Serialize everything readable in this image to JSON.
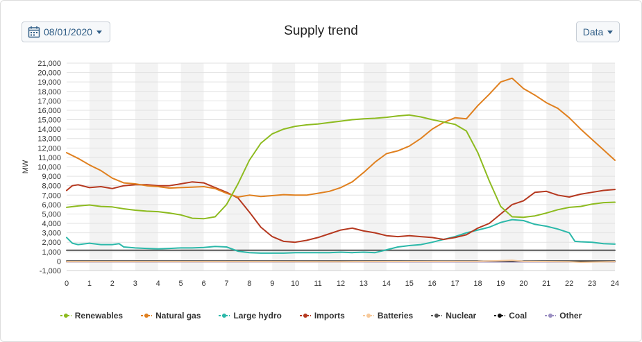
{
  "header": {
    "date_label": "08/01/2020",
    "data_label": "Data",
    "title": "Supply trend"
  },
  "icons": {
    "date": "calendar-icon",
    "dropdown": "caret-down-icon"
  },
  "chart_data": {
    "type": "line",
    "title": "Supply trend",
    "xlabel": "",
    "ylabel": "MW",
    "xlim": [
      0,
      24
    ],
    "ylim": [
      -1000,
      21000
    ],
    "x_ticks": [
      0,
      1,
      2,
      3,
      4,
      5,
      6,
      7,
      8,
      9,
      10,
      11,
      12,
      13,
      14,
      15,
      16,
      17,
      18,
      19,
      20,
      21,
      22,
      23,
      24
    ],
    "y_ticks": [
      -1000,
      0,
      1000,
      2000,
      3000,
      4000,
      5000,
      6000,
      7000,
      8000,
      9000,
      10000,
      11000,
      12000,
      13000,
      14000,
      15000,
      16000,
      17000,
      18000,
      19000,
      20000,
      21000
    ],
    "y_tick_labels": [
      "-1,000",
      "0",
      "1,000",
      "2,000",
      "3,000",
      "4,000",
      "5,000",
      "6,000",
      "7,000",
      "8,000",
      "9,000",
      "10,000",
      "11,000",
      "12,000",
      "13,000",
      "14,000",
      "15,000",
      "16,000",
      "17,000",
      "18,000",
      "19,000",
      "20,000",
      "21,000"
    ],
    "grid": true,
    "alternating_hour_bands": true,
    "legend_position": "bottom",
    "series": [
      {
        "name": "Renewables",
        "color": "#8dbb1f",
        "x": [
          0,
          0.5,
          1,
          1.5,
          2,
          2.5,
          3,
          3.5,
          4,
          4.5,
          5,
          5.5,
          6,
          6.5,
          7,
          7.5,
          8,
          8.5,
          9,
          9.5,
          10,
          10.5,
          11,
          11.5,
          12,
          12.5,
          13,
          13.5,
          14,
          14.5,
          15,
          15.5,
          16,
          16.5,
          17,
          17.5,
          18,
          18.5,
          19,
          19.5,
          20,
          20.5,
          21,
          21.5,
          22,
          22.5,
          23,
          23.5,
          24
        ],
        "values": [
          5700,
          5850,
          5950,
          5800,
          5750,
          5550,
          5400,
          5300,
          5250,
          5100,
          4900,
          4550,
          4500,
          4700,
          6000,
          8200,
          10700,
          12500,
          13500,
          14000,
          14300,
          14450,
          14550,
          14700,
          14850,
          15000,
          15100,
          15150,
          15250,
          15400,
          15500,
          15300,
          15000,
          14750,
          14500,
          13800,
          11500,
          8500,
          5800,
          4700,
          4650,
          4800,
          5100,
          5450,
          5700,
          5800,
          6050,
          6200,
          6250
        ]
      },
      {
        "name": "Natural gas",
        "color": "#e0801f",
        "x": [
          0,
          0.5,
          1,
          1.5,
          2,
          2.5,
          3,
          3.5,
          4,
          4.5,
          5,
          5.5,
          6,
          6.5,
          7,
          7.5,
          8,
          8.5,
          9,
          9.5,
          10,
          10.5,
          11,
          11.5,
          12,
          12.5,
          13,
          13.5,
          14,
          14.5,
          15,
          15.5,
          16,
          16.5,
          17,
          17.5,
          18,
          18.5,
          19,
          19.5,
          20,
          20.5,
          21,
          21.5,
          22,
          22.5,
          23,
          23.5,
          24
        ],
        "values": [
          11500,
          10900,
          10200,
          9600,
          8800,
          8300,
          8200,
          8000,
          7900,
          7750,
          7800,
          7850,
          7900,
          7700,
          7200,
          6800,
          7000,
          6850,
          6950,
          7050,
          7000,
          7000,
          7200,
          7400,
          7800,
          8400,
          9400,
          10500,
          11400,
          11700,
          12200,
          13000,
          14000,
          14700,
          15200,
          15100,
          16500,
          17700,
          19000,
          19400,
          18300,
          17600,
          16800,
          16200,
          15200,
          14000,
          12900,
          11800,
          10700
        ]
      },
      {
        "name": "Large hydro",
        "color": "#2bb8a9",
        "x": [
          0,
          0.25,
          0.5,
          1,
          1.5,
          2,
          2.3,
          2.5,
          3,
          3.5,
          4,
          4.5,
          5,
          5.5,
          6,
          6.5,
          7,
          7.5,
          8,
          8.5,
          9,
          9.5,
          10,
          10.5,
          11,
          11.5,
          12,
          12.5,
          13,
          13.5,
          14,
          14.5,
          15,
          15.5,
          16,
          16.5,
          17,
          17.5,
          18,
          18.5,
          19,
          19.5,
          20,
          20.5,
          21,
          21.5,
          22,
          22.25,
          22.5,
          23,
          23.5,
          24
        ],
        "values": [
          2500,
          1900,
          1750,
          1900,
          1750,
          1750,
          1850,
          1500,
          1400,
          1350,
          1300,
          1350,
          1400,
          1400,
          1450,
          1550,
          1500,
          1050,
          900,
          850,
          850,
          850,
          900,
          900,
          900,
          900,
          950,
          900,
          950,
          900,
          1200,
          1500,
          1650,
          1750,
          2000,
          2300,
          2600,
          3000,
          3300,
          3600,
          4100,
          4400,
          4300,
          3900,
          3700,
          3400,
          3000,
          2100,
          2050,
          2000,
          1850,
          1800
        ]
      },
      {
        "name": "Imports",
        "color": "#b5381f",
        "x": [
          0,
          0.25,
          0.5,
          1,
          1.5,
          2,
          2.5,
          3,
          3.5,
          4,
          4.5,
          5,
          5.5,
          6,
          6.5,
          7,
          7.5,
          8,
          8.5,
          9,
          9.5,
          10,
          10.5,
          11,
          11.5,
          12,
          12.5,
          13,
          13.5,
          14,
          14.5,
          15,
          15.5,
          16,
          16.5,
          17,
          17.5,
          18,
          18.5,
          19,
          19.5,
          20,
          20.5,
          21,
          21.5,
          22,
          22.5,
          23,
          23.5,
          24
        ],
        "values": [
          7500,
          8000,
          8100,
          7800,
          7900,
          7700,
          8000,
          8100,
          8100,
          8000,
          8000,
          8200,
          8400,
          8300,
          7800,
          7300,
          6700,
          5200,
          3600,
          2600,
          2100,
          2000,
          2200,
          2500,
          2900,
          3300,
          3500,
          3200,
          3000,
          2700,
          2600,
          2700,
          2600,
          2500,
          2300,
          2500,
          2800,
          3500,
          4000,
          5000,
          6000,
          6400,
          7300,
          7400,
          7000,
          6800,
          7100,
          7300,
          7500,
          7600
        ]
      },
      {
        "name": "Batteries",
        "color": "#f7c99a",
        "x": [
          0,
          6,
          12,
          18,
          19.5,
          20,
          22,
          22.5,
          24
        ],
        "values": [
          -50,
          -50,
          -60,
          -20,
          80,
          -30,
          -60,
          -120,
          -50
        ]
      },
      {
        "name": "Nuclear",
        "color": "#555555",
        "x": [
          0,
          6,
          12,
          17,
          18,
          19,
          20,
          24
        ],
        "values": [
          1150,
          1150,
          1150,
          1150,
          1150,
          1150,
          1150,
          1150
        ]
      },
      {
        "name": "Coal",
        "color": "#111111",
        "x": [
          0,
          12,
          24
        ],
        "values": [
          0,
          0,
          0
        ]
      },
      {
        "name": "Other",
        "color": "#9b8fc2",
        "x": [
          0,
          12,
          24
        ],
        "values": [
          -80,
          -80,
          -80
        ]
      }
    ]
  }
}
